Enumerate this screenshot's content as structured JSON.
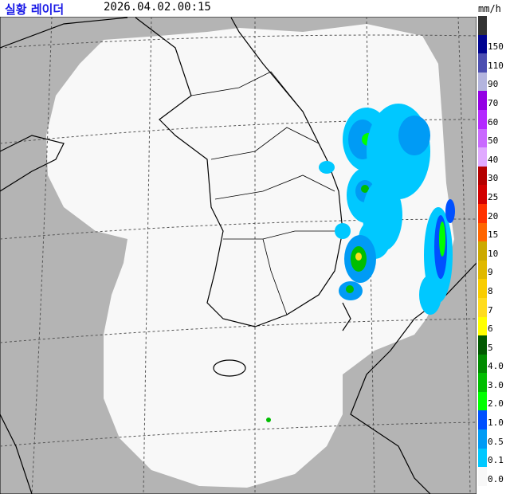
{
  "header": {
    "title": "실황 레이더",
    "timestamp": "2026.04.02.00:15",
    "unit": "mm/h"
  },
  "legend": {
    "segments": [
      {
        "label": "",
        "color": "#333333"
      },
      {
        "label": "150",
        "color": "#000390"
      },
      {
        "label": "110",
        "color": "#4c4eb1"
      },
      {
        "label": "90",
        "color": "#b3b4de"
      },
      {
        "label": "70",
        "color": "#9300e4"
      },
      {
        "label": "60",
        "color": "#b329ff"
      },
      {
        "label": "50",
        "color": "#c969ff"
      },
      {
        "label": "40",
        "color": "#e0a9ff"
      },
      {
        "label": "30",
        "color": "#b40000"
      },
      {
        "label": "25",
        "color": "#d20000"
      },
      {
        "label": "20",
        "color": "#ff3200"
      },
      {
        "label": "15",
        "color": "#ff6600"
      },
      {
        "label": "10",
        "color": "#ccaa00"
      },
      {
        "label": "9",
        "color": "#e0b900"
      },
      {
        "label": "8",
        "color": "#f9cd00"
      },
      {
        "label": "7",
        "color": "#ffdc1f"
      },
      {
        "label": "6",
        "color": "#ffff00"
      },
      {
        "label": "5",
        "color": "#005a00"
      },
      {
        "label": "4.0",
        "color": "#008c00"
      },
      {
        "label": "3.0",
        "color": "#00be00"
      },
      {
        "label": "2.0",
        "color": "#00ff00"
      },
      {
        "label": "1.0",
        "color": "#0050ff"
      },
      {
        "label": "0.5",
        "color": "#009bf5"
      },
      {
        "label": "0.1",
        "color": "#00c8ff"
      },
      {
        "label": "0.0",
        "color": "#f8f8f8"
      }
    ]
  },
  "map": {
    "outside_coverage_color": "#b4b4b4",
    "coverage_color": "#f8f8f8"
  }
}
